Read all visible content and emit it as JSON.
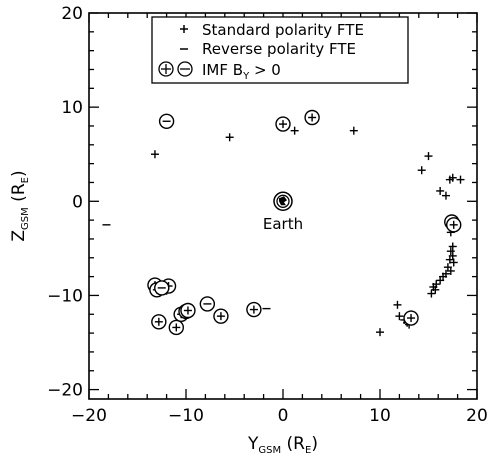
{
  "chart_data": {
    "type": "scatter",
    "title": "",
    "xlabel": {
      "main": "Y",
      "sub": "GSM",
      "unit_open": " (R",
      "unit_sub": "E",
      "unit_close": ")"
    },
    "ylabel": {
      "main": "Z",
      "sub": "GSM",
      "unit_open": " (R",
      "unit_sub": "E",
      "unit_close": ")"
    },
    "xlim": [
      -20,
      20
    ],
    "ylim": [
      -21,
      20
    ],
    "x_ticks": [
      -20,
      -10,
      0,
      10,
      20
    ],
    "y_ticks": [
      -20,
      -10,
      0,
      10,
      20
    ],
    "x_tick_labels": [
      "−20",
      "−10",
      "0",
      "10",
      "20"
    ],
    "y_tick_labels": [
      "−20",
      "−10",
      "0",
      "10",
      "20"
    ],
    "grid": false,
    "legend": {
      "placement": "top",
      "entries": [
        {
          "marker": "+",
          "text": "Standard polarity FTE"
        },
        {
          "marker": "−",
          "text": "Reverse polarity FTE"
        },
        {
          "marker": "⊕⊖",
          "text_main": "IMF B",
          "text_sub": "Y",
          "text_rest": " > 0"
        }
      ]
    },
    "annotations": [
      {
        "text": "Earth",
        "x": 0,
        "y": -2.4
      }
    ],
    "earth": {
      "x": 0,
      "y": 0
    },
    "series": [
      {
        "name": "Standard polarity FTE",
        "marker": "plus",
        "points": [
          [
            -13.2,
            5.0
          ],
          [
            -5.5,
            6.8
          ],
          [
            1.2,
            7.5
          ],
          [
            3.2,
            8.9
          ],
          [
            7.3,
            7.5
          ],
          [
            14.3,
            3.3
          ],
          [
            15.0,
            4.8
          ],
          [
            16.2,
            1.1
          ],
          [
            16.8,
            0.6
          ],
          [
            17.2,
            2.3
          ],
          [
            17.5,
            2.5
          ],
          [
            18.3,
            2.3
          ],
          [
            17.2,
            -2.0
          ],
          [
            17.4,
            -2.4
          ],
          [
            17.6,
            -2.8
          ],
          [
            17.3,
            -3.3
          ],
          [
            17.5,
            -4.8
          ],
          [
            17.3,
            -5.3
          ],
          [
            17.5,
            -5.8
          ],
          [
            17.2,
            -6.2
          ],
          [
            17.6,
            -6.5
          ],
          [
            17.0,
            -7.0
          ],
          [
            17.3,
            -7.4
          ],
          [
            16.8,
            -7.7
          ],
          [
            16.5,
            -8.0
          ],
          [
            16.2,
            -8.4
          ],
          [
            15.8,
            -8.8
          ],
          [
            15.5,
            -9.1
          ],
          [
            15.7,
            -9.4
          ],
          [
            15.3,
            -9.8
          ],
          [
            11.8,
            -11.0
          ],
          [
            12.0,
            -12.2
          ],
          [
            12.5,
            -12.6
          ],
          [
            12.8,
            -12.9
          ],
          [
            13.0,
            -13.1
          ],
          [
            10.0,
            -13.9
          ],
          [
            -13.0,
            -8.8
          ],
          [
            -12.5,
            -9.2
          ],
          [
            -11.8,
            -8.9
          ],
          [
            -12.0,
            -9.5
          ],
          [
            -10.3,
            -11.7
          ],
          [
            -10.0,
            -11.9
          ]
        ]
      },
      {
        "name": "Reverse polarity FTE",
        "marker": "minus",
        "points": [
          [
            -18.2,
            -2.5
          ],
          [
            -1.7,
            -11.4
          ]
        ]
      },
      {
        "name": "IMF B_Y > 0 (standard)",
        "marker": "circle-plus",
        "points": [
          [
            0.0,
            8.2
          ],
          [
            3.0,
            8.9
          ],
          [
            17.4,
            -2.2
          ],
          [
            17.6,
            -2.5
          ],
          [
            13.2,
            -12.4
          ],
          [
            -13.2,
            -8.9
          ],
          [
            -13.0,
            -9.4
          ],
          [
            -11.8,
            -9.0
          ],
          [
            -12.8,
            -12.8
          ],
          [
            -11.0,
            -13.4
          ],
          [
            -10.5,
            -12.0
          ],
          [
            -10.0,
            -11.7
          ],
          [
            -9.8,
            -11.6
          ],
          [
            -6.4,
            -12.2
          ],
          [
            -3.0,
            -11.5
          ]
        ]
      },
      {
        "name": "IMF B_Y > 0 (reverse)",
        "marker": "circle-minus",
        "points": [
          [
            -12.0,
            8.5
          ],
          [
            -7.8,
            -10.9
          ],
          [
            -12.5,
            -9.2
          ]
        ]
      }
    ]
  }
}
